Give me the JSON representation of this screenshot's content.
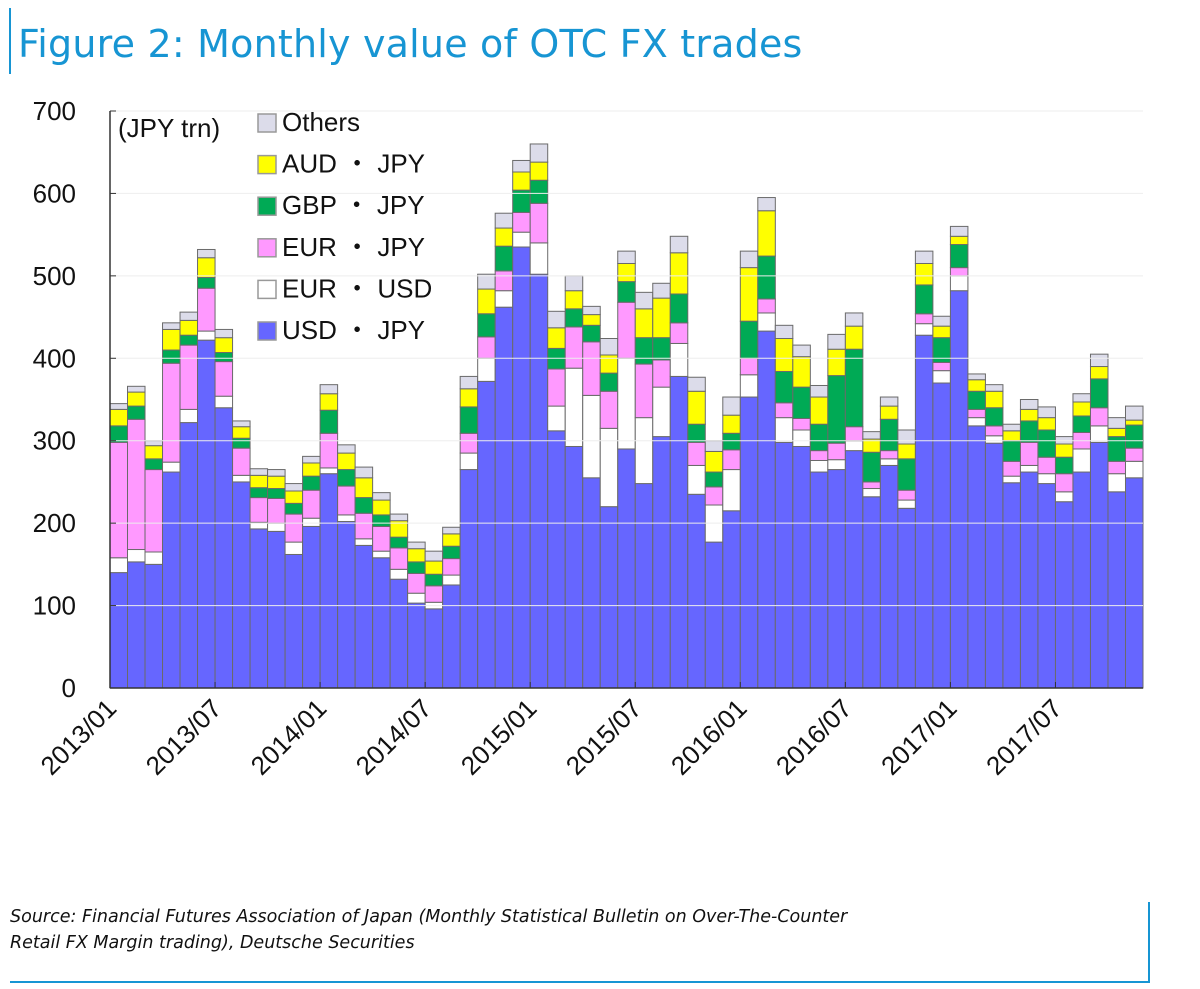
{
  "title": "Figure 2: Monthly value of OTC FX trades",
  "source_line1": "Source: Financial Futures Association of Japan (Monthly Statistical Bulletin on Over-The-Counter",
  "source_line2": "Retail FX Margin trading), Deutsche Securities",
  "chart_data": {
    "type": "bar",
    "stacked": true,
    "title": "Figure 2: Monthly value of OTC FX trades",
    "ylabel": "(JPY trn)",
    "xlabel": "",
    "ylim": [
      0,
      700
    ],
    "yticks": [
      0,
      100,
      200,
      300,
      400,
      500,
      600,
      700
    ],
    "xtick_labels": [
      "2013/01",
      "2013/07",
      "2014/01",
      "2014/07",
      "2015/01",
      "2015/07",
      "2016/01",
      "2016/07",
      "2017/01",
      "2017/07"
    ],
    "legend_position": "top-left",
    "categories": [
      "2013/01",
      "2013/02",
      "2013/03",
      "2013/04",
      "2013/05",
      "2013/06",
      "2013/07",
      "2013/08",
      "2013/09",
      "2013/10",
      "2013/11",
      "2013/12",
      "2014/01",
      "2014/02",
      "2014/03",
      "2014/04",
      "2014/05",
      "2014/06",
      "2014/07",
      "2014/08",
      "2014/09",
      "2014/10",
      "2014/11",
      "2014/12",
      "2015/01",
      "2015/02",
      "2015/03",
      "2015/04",
      "2015/05",
      "2015/06",
      "2015/07",
      "2015/08",
      "2015/09",
      "2015/10",
      "2015/11",
      "2015/12",
      "2016/01",
      "2016/02",
      "2016/03",
      "2016/04",
      "2016/05",
      "2016/06",
      "2016/07",
      "2016/08",
      "2016/09",
      "2016/10",
      "2016/11",
      "2016/12",
      "2017/01",
      "2017/02",
      "2017/03",
      "2017/04",
      "2017/05",
      "2017/06",
      "2017/07",
      "2017/08",
      "2017/09",
      "2017/10",
      "2017/11"
    ],
    "series": [
      {
        "name": "USD・JPY",
        "color": "#6666ff",
        "values": [
          140,
          153,
          150,
          262,
          322,
          422,
          340,
          250,
          193,
          190,
          162,
          196,
          260,
          202,
          173,
          158,
          132,
          103,
          96,
          125,
          265,
          372,
          462,
          535,
          502,
          312,
          293,
          255,
          220,
          290,
          248,
          305,
          378,
          235,
          177,
          215,
          353,
          433,
          298,
          293,
          262,
          265,
          288,
          232,
          270,
          218,
          428,
          370,
          482,
          318,
          297,
          249,
          262,
          248,
          226,
          262,
          298,
          238,
          255
        ]
      },
      {
        "name": "EUR・USD",
        "color": "#ffffff",
        "values": [
          18,
          15,
          15,
          12,
          16,
          11,
          14,
          8,
          8,
          10,
          15,
          10,
          7,
          8,
          8,
          8,
          12,
          12,
          8,
          12,
          20,
          28,
          20,
          18,
          38,
          30,
          95,
          100,
          95,
          110,
          80,
          60,
          40,
          35,
          45,
          50,
          27,
          22,
          30,
          20,
          14,
          12,
          12,
          10,
          8,
          10,
          14,
          15,
          18,
          10,
          9,
          8,
          8,
          12,
          12,
          28,
          20,
          22,
          20
        ]
      },
      {
        "name": "EUR・JPY",
        "color": "#ff99ff",
        "values": [
          140,
          158,
          100,
          120,
          78,
          52,
          42,
          33,
          30,
          30,
          34,
          34,
          42,
          35,
          31,
          30,
          26,
          24,
          20,
          20,
          24,
          26,
          24,
          24,
          48,
          45,
          50,
          65,
          45,
          68,
          65,
          33,
          25,
          28,
          22,
          24,
          20,
          17,
          18,
          14,
          12,
          20,
          17,
          8,
          10,
          12,
          12,
          10,
          10,
          10,
          12,
          18,
          28,
          20,
          22,
          20,
          22,
          15,
          16
        ]
      },
      {
        "name": "GBP・JPY",
        "color": "#00aa55",
        "values": [
          20,
          16,
          13,
          16,
          12,
          13,
          11,
          12,
          12,
          12,
          13,
          17,
          28,
          20,
          19,
          14,
          13,
          14,
          14,
          15,
          32,
          28,
          30,
          27,
          28,
          25,
          22,
          20,
          22,
          25,
          32,
          27,
          35,
          22,
          18,
          20,
          45,
          52,
          38,
          38,
          32,
          82,
          94,
          36,
          38,
          38,
          35,
          30,
          28,
          22,
          22,
          25,
          26,
          33,
          20,
          20,
          35,
          30,
          28
        ]
      },
      {
        "name": "AUD・JPY",
        "color": "#ffff00",
        "values": [
          20,
          17,
          16,
          25,
          18,
          24,
          18,
          14,
          15,
          15,
          15,
          16,
          20,
          20,
          24,
          18,
          20,
          16,
          16,
          15,
          22,
          30,
          22,
          22,
          22,
          25,
          22,
          13,
          22,
          22,
          35,
          48,
          50,
          40,
          25,
          22,
          65,
          55,
          40,
          37,
          33,
          32,
          28,
          16,
          16,
          18,
          26,
          14,
          10,
          14,
          20,
          12,
          14,
          15,
          16,
          17,
          15,
          10,
          6
        ]
      },
      {
        "name": "Others",
        "color": "#dcdcea",
        "values": [
          7,
          7,
          6,
          8,
          10,
          10,
          10,
          7,
          8,
          8,
          9,
          8,
          11,
          10,
          13,
          9,
          8,
          8,
          12,
          8,
          15,
          18,
          18,
          14,
          22,
          20,
          18,
          10,
          20,
          15,
          20,
          18,
          20,
          17,
          13,
          22,
          20,
          16,
          16,
          14,
          14,
          18,
          16,
          9,
          11,
          17,
          15,
          12,
          12,
          7,
          8,
          8,
          12,
          13,
          9,
          10,
          15,
          13,
          17
        ]
      }
    ]
  }
}
